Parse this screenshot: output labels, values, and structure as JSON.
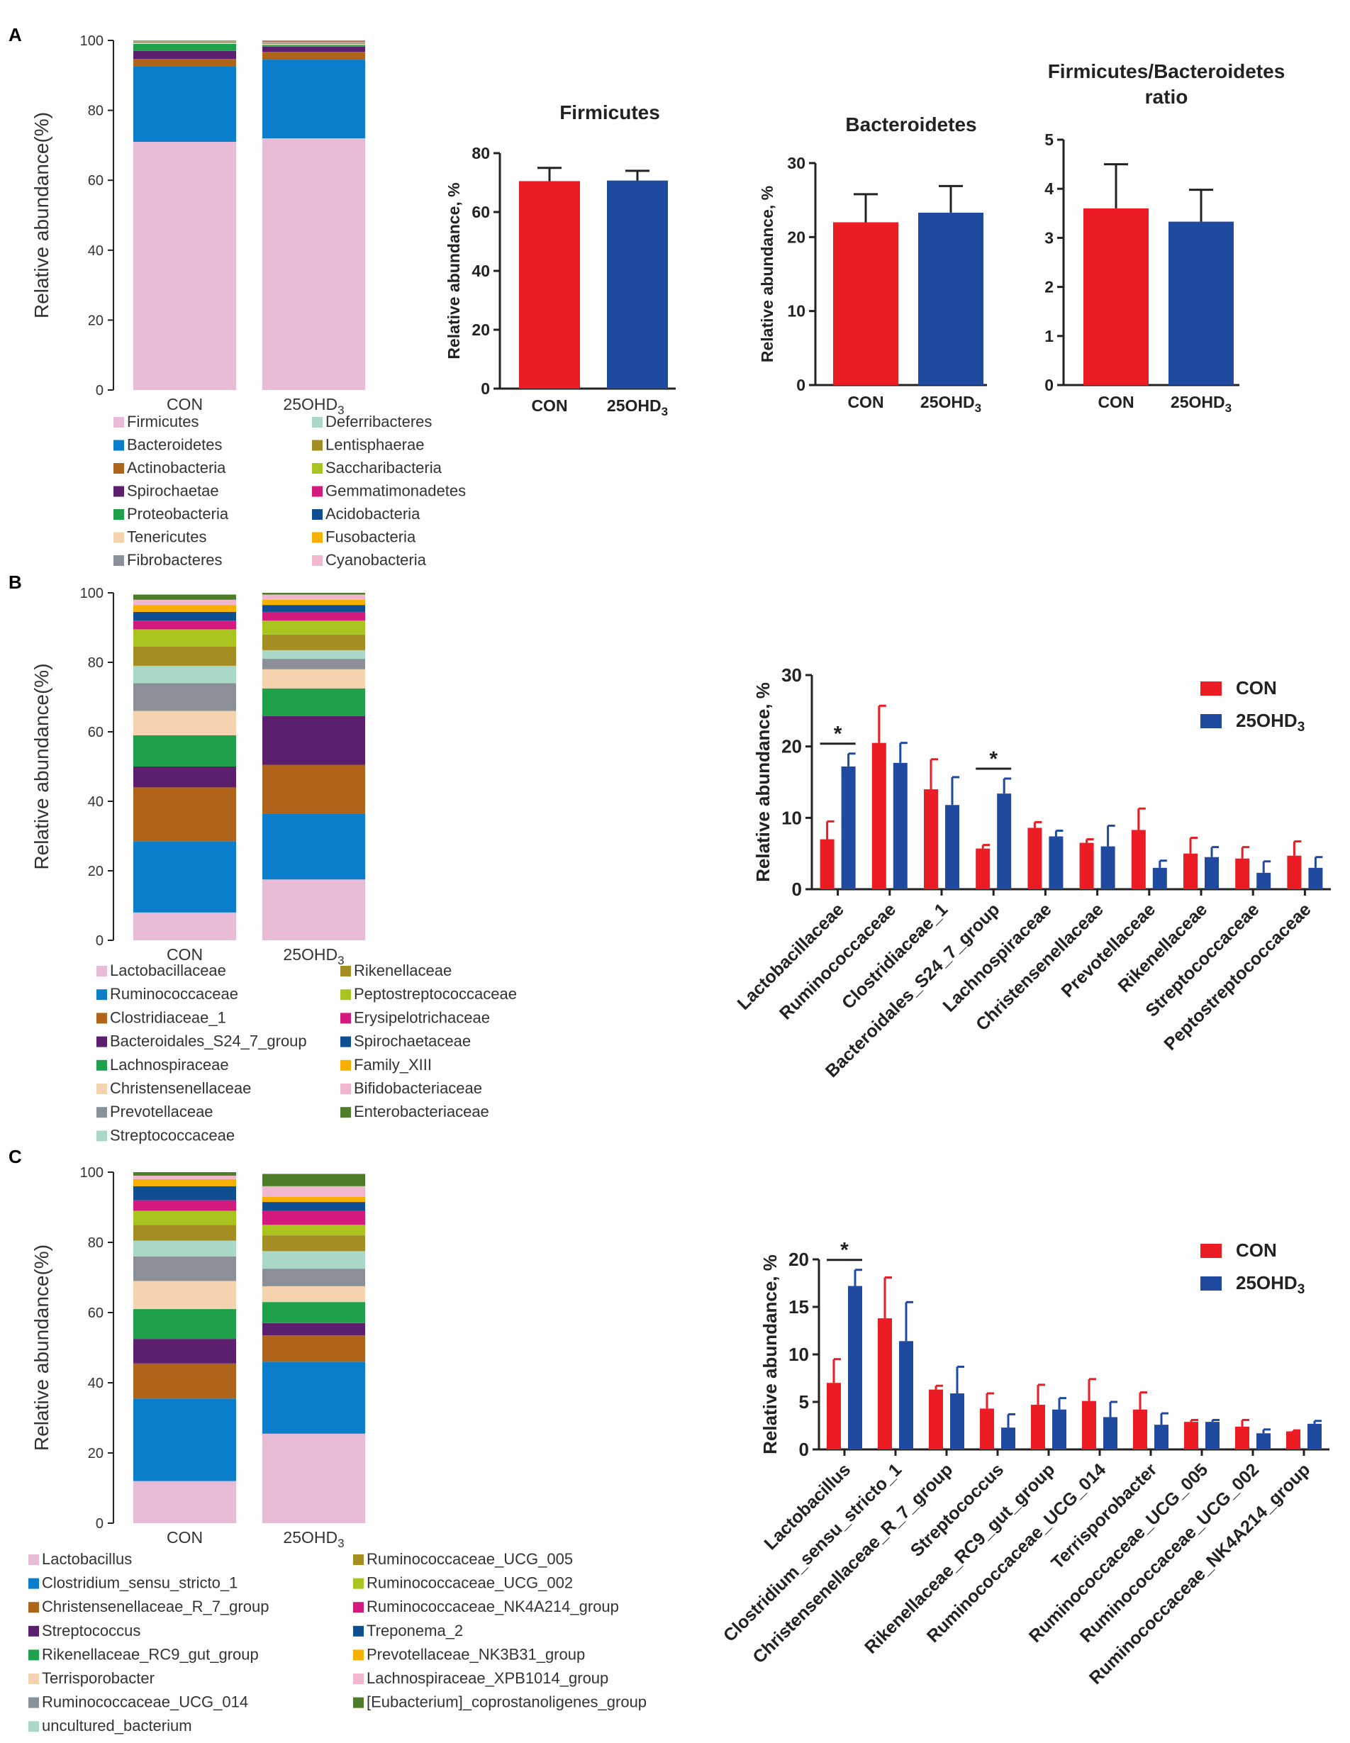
{
  "panels": {
    "a": "A",
    "b": "B",
    "c": "C"
  },
  "groups": [
    "CON",
    "25OHD3"
  ],
  "colors": {
    "con": "#ec1c24",
    "ohd": "#1f4aa0",
    "axis": "#222222"
  },
  "chart_data": [
    {
      "id": "A-stack",
      "type": "bar",
      "stacked": true,
      "panel": "A",
      "title": "",
      "ylabel": "Relative abundance(%)",
      "ylim": [
        0,
        100
      ],
      "yticks": [
        0,
        20,
        40,
        60,
        80,
        100
      ],
      "categories": [
        "CON",
        "25OHD3"
      ],
      "series": [
        {
          "name": "Firmicutes",
          "color": "#e8bcd6",
          "values": [
            71.0,
            72.0
          ]
        },
        {
          "name": "Bacteroidetes",
          "color": "#0a7ecb",
          "values": [
            21.5,
            22.5
          ]
        },
        {
          "name": "Actinobacteria",
          "color": "#b0641a",
          "values": [
            2.2,
            2.2
          ]
        },
        {
          "name": "Spirochaetae",
          "color": "#5b1f6e",
          "values": [
            2.3,
            1.5
          ]
        },
        {
          "name": "Proteobacteria",
          "color": "#1ea14a",
          "values": [
            2.0,
            0.5
          ]
        },
        {
          "name": "Tenericutes",
          "color": "#f5d3ae",
          "values": [
            0.3,
            0.3
          ]
        },
        {
          "name": "Fibrobacteres",
          "color": "#8b8f98",
          "values": [
            0.3,
            0.3
          ]
        },
        {
          "name": "Deferribacteres",
          "color": "#a9d8c6",
          "values": [
            0.1,
            0.2
          ]
        },
        {
          "name": "Lentisphaerae",
          "color": "#a48d22",
          "values": [
            0.1,
            0.1
          ]
        },
        {
          "name": "Saccharibacteria",
          "color": "#a9c41f",
          "values": [
            0.1,
            0.1
          ]
        },
        {
          "name": "Gemmatimonadetes",
          "color": "#d4197f",
          "values": [
            0.05,
            0.1
          ]
        },
        {
          "name": "Acidobacteria",
          "color": "#0f4e91",
          "values": [
            0.05,
            0.1
          ]
        },
        {
          "name": "Fusobacteria",
          "color": "#f7b000",
          "values": [
            0.0,
            0.05
          ]
        },
        {
          "name": "Cyanobacteria",
          "color": "#f1b8cd",
          "values": [
            0.0,
            0.05
          ]
        }
      ]
    },
    {
      "id": "A-firm",
      "type": "bar",
      "panel": "A",
      "title": "Firmicutes",
      "ylabel": "Relative abundance, %",
      "ylim": [
        0,
        80
      ],
      "yticks": [
        0,
        20,
        40,
        60,
        80
      ],
      "categories": [
        "CON",
        "25OHD3"
      ],
      "values": [
        70.5,
        70.7
      ],
      "errors": [
        4.5,
        3.3
      ]
    },
    {
      "id": "A-bact",
      "type": "bar",
      "panel": "A",
      "title": "Bacteroidetes",
      "ylabel": "Relative abundance, %",
      "ylim": [
        0,
        30
      ],
      "yticks": [
        0,
        10,
        20,
        30
      ],
      "categories": [
        "CON",
        "25OHD3"
      ],
      "values": [
        22.0,
        23.3
      ],
      "errors": [
        3.8,
        3.6
      ]
    },
    {
      "id": "A-ratio",
      "type": "bar",
      "panel": "A",
      "title": "Firmicutes/Bacteroidetes",
      "title2": "ratio",
      "ylabel": "",
      "ylim": [
        0,
        5
      ],
      "yticks": [
        0,
        1,
        2,
        3,
        4,
        5
      ],
      "categories": [
        "CON",
        "25OHD3"
      ],
      "values": [
        3.6,
        3.33
      ],
      "errors": [
        0.9,
        0.65
      ]
    },
    {
      "id": "B-stack",
      "type": "bar",
      "stacked": true,
      "panel": "B",
      "title": "",
      "ylabel": "Relative abundance(%)",
      "ylim": [
        0,
        100
      ],
      "yticks": [
        0,
        20,
        40,
        60,
        80,
        100
      ],
      "categories": [
        "CON",
        "25OHD3"
      ],
      "series": [
        {
          "name": "Lactobacillaceae",
          "color": "#e8bcd6",
          "values": [
            8,
            17.5
          ]
        },
        {
          "name": "Ruminococcaceae",
          "color": "#0a7ecb",
          "values": [
            20.5,
            19
          ]
        },
        {
          "name": "Clostridiaceae_1",
          "color": "#b0641a",
          "values": [
            15.5,
            14
          ]
        },
        {
          "name": "Bacteroidales_S24_7_group",
          "color": "#5b1f6e",
          "values": [
            6,
            14
          ]
        },
        {
          "name": "Lachnospiraceae",
          "color": "#1ea14a",
          "values": [
            9,
            8
          ]
        },
        {
          "name": "Christensenellaceae",
          "color": "#f5d3ae",
          "values": [
            7,
            5.5
          ]
        },
        {
          "name": "Prevotellaceae",
          "color": "#8b8f98",
          "values": [
            8,
            3
          ]
        },
        {
          "name": "Streptococcaceae",
          "color": "#a9d8c6",
          "values": [
            5,
            2.5
          ]
        },
        {
          "name": "Rikenellaceae",
          "color": "#a48d22",
          "values": [
            5.5,
            4.5
          ]
        },
        {
          "name": "Peptostreptococcaceae",
          "color": "#a9c41f",
          "values": [
            5,
            4
          ]
        },
        {
          "name": "Erysipelotrichaceae",
          "color": "#d4197f",
          "values": [
            2.5,
            2.5
          ]
        },
        {
          "name": "Spirochaetaceae",
          "color": "#0f4e91",
          "values": [
            2.5,
            2
          ]
        },
        {
          "name": "Family_XIII",
          "color": "#f7b000",
          "values": [
            2,
            1.5
          ]
        },
        {
          "name": "Bifidobacteriaceae",
          "color": "#f1b8cd",
          "values": [
            1.5,
            1.5
          ]
        },
        {
          "name": "Enterobacteriaceae",
          "color": "#4e7d2a",
          "values": [
            1.5,
            0.5
          ]
        }
      ]
    },
    {
      "id": "B-group",
      "type": "bar",
      "panel": "B",
      "title": "",
      "ylabel": "Relative abundance, %",
      "ylim": [
        0,
        30
      ],
      "yticks": [
        0,
        10,
        20,
        30
      ],
      "categories": [
        "Lactobacillaceae",
        "Ruminococcaceae",
        "Clostridiaceae_1",
        "Bacteroidales_S24_7_group",
        "Lachnospiraceae",
        "Christensenellaceae",
        "Prevotellaceae",
        "Rikenellaceae",
        "Streptococcaceae",
        "Peptostreptococcaceae"
      ],
      "series": [
        {
          "name": "CON",
          "values": [
            7.0,
            20.5,
            14.0,
            5.7,
            8.6,
            6.5,
            8.3,
            5.0,
            4.3,
            4.7
          ],
          "errors": [
            2.5,
            5.2,
            4.2,
            0.5,
            0.8,
            0.5,
            3.0,
            2.2,
            1.6,
            2.0
          ]
        },
        {
          "name": "25OHD3",
          "values": [
            17.2,
            17.7,
            11.8,
            13.4,
            7.4,
            6.0,
            3.0,
            4.5,
            2.3,
            3.0
          ],
          "errors": [
            1.8,
            2.8,
            3.9,
            2.1,
            0.8,
            2.9,
            1.0,
            1.4,
            1.6,
            1.5
          ]
        }
      ],
      "significance": [
        "Lactobacillaceae",
        "Bacteroidales_S24_7_group"
      ],
      "sig_label": "*",
      "legend": "top-right"
    },
    {
      "id": "C-stack",
      "type": "bar",
      "stacked": true,
      "panel": "C",
      "title": "",
      "ylabel": "Relative abundance(%)",
      "ylim": [
        0,
        100
      ],
      "yticks": [
        0,
        20,
        40,
        60,
        80,
        100
      ],
      "categories": [
        "CON",
        "25OHD3"
      ],
      "series": [
        {
          "name": "Lactobacillus",
          "color": "#e8bcd6",
          "values": [
            12,
            25.5
          ]
        },
        {
          "name": "Clostridium_sensu_stricto_1",
          "color": "#0a7ecb",
          "values": [
            23.5,
            20.5
          ]
        },
        {
          "name": "Christensenellaceae_R_7_group",
          "color": "#b0641a",
          "values": [
            10,
            7.5
          ]
        },
        {
          "name": "Streptococcus",
          "color": "#5b1f6e",
          "values": [
            7,
            3.5
          ]
        },
        {
          "name": "Rikenellaceae_RC9_gut_group",
          "color": "#1ea14a",
          "values": [
            8.5,
            6
          ]
        },
        {
          "name": "Terrisporobacter",
          "color": "#f5d3ae",
          "values": [
            8,
            4.5
          ]
        },
        {
          "name": "Ruminococcaceae_UCG_014",
          "color": "#8b8f98",
          "values": [
            7,
            5
          ]
        },
        {
          "name": "uncultured_bacterium",
          "color": "#a9d8c6",
          "values": [
            4.5,
            5
          ]
        },
        {
          "name": "Ruminococcaceae_UCG_005",
          "color": "#a48d22",
          "values": [
            4.5,
            4.5
          ]
        },
        {
          "name": "Ruminococcaceae_UCG_002",
          "color": "#a9c41f",
          "values": [
            4,
            3
          ]
        },
        {
          "name": "Ruminococcaceae_NK4A214_group",
          "color": "#d4197f",
          "values": [
            3,
            4
          ]
        },
        {
          "name": "Treponema_2",
          "color": "#0f4e91",
          "values": [
            4,
            2.5
          ]
        },
        {
          "name": "Prevotellaceae_NK3B31_group",
          "color": "#f7b000",
          "values": [
            2,
            1.5
          ]
        },
        {
          "name": "Lachnospiraceae_XPB1014_group",
          "color": "#f1b8cd",
          "values": [
            1,
            3
          ]
        },
        {
          "name": "[Eubacterium]_coprostanoligenes_group",
          "color": "#4e7d2a",
          "values": [
            1,
            3.5
          ]
        }
      ]
    },
    {
      "id": "C-genus",
      "type": "bar",
      "panel": "C",
      "title": "",
      "ylabel": "Relative abundance, %",
      "ylim": [
        0,
        20
      ],
      "yticks": [
        0,
        5,
        10,
        15,
        20
      ],
      "categories": [
        "Lactobacillus",
        "Clostridium_sensu_stricto_1",
        "Christensenellaceae_R_7_group",
        "Streptococcus",
        "Rikenellaceae_RC9_gut_group",
        "Ruminococcaceae_UCG_014",
        "Terrisporobacter",
        "Ruminococcaceae_UCG_005",
        "Ruminococcaceae_UCG_002",
        "Ruminococcaceae_NK4A214_group"
      ],
      "series": [
        {
          "name": "CON",
          "values": [
            7.0,
            13.8,
            6.3,
            4.3,
            4.7,
            5.1,
            4.2,
            2.9,
            2.4,
            1.9
          ],
          "errors": [
            2.5,
            4.3,
            0.4,
            1.6,
            2.1,
            2.3,
            1.8,
            0.2,
            0.7,
            0.1
          ]
        },
        {
          "name": "25OHD3",
          "values": [
            17.2,
            11.4,
            5.9,
            2.3,
            4.2,
            3.4,
            2.6,
            2.9,
            1.7,
            2.7
          ],
          "errors": [
            1.7,
            4.1,
            2.8,
            1.4,
            1.2,
            1.6,
            1.2,
            0.2,
            0.4,
            0.3
          ]
        }
      ],
      "significance": [
        "Lactobacillus"
      ],
      "sig_label": "*",
      "legend": "top-right"
    }
  ]
}
